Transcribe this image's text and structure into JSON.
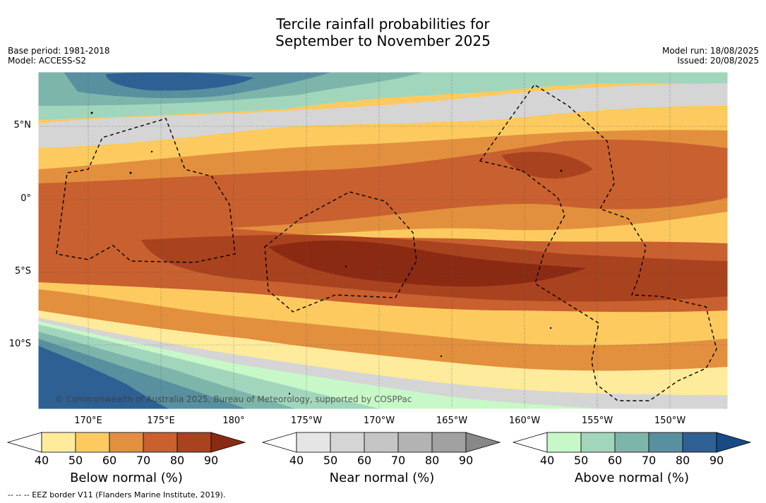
{
  "title_line1": "Tercile rainfall probabilities for",
  "title_line2": "September to November 2025",
  "meta_left": {
    "base_period": "Base period: 1981-2018",
    "model": "Model: ACCESS-S2"
  },
  "meta_right": {
    "model_run": "Model run: 18/08/2025",
    "issued": "Issued: 20/08/2025"
  },
  "latitudes": [
    "5°N",
    "0°",
    "5°S",
    "10°S"
  ],
  "longitudes": [
    "170°E",
    "175°E",
    "180°",
    "175°W",
    "170°W",
    "165°W",
    "160°W",
    "155°W",
    "150°W"
  ],
  "copyright": "© Commonwealth of Australia 2025, Bureau of Meteorology, supported by COSPPac",
  "colorbars": [
    {
      "title": "Below normal (%)",
      "ticks": [
        "40",
        "50",
        "60",
        "70",
        "80",
        "90"
      ],
      "colors": [
        "#ffffff",
        "#ffeb9c",
        "#fdca5f",
        "#e2903e",
        "#c8602f",
        "#a9421e",
        "#8b2a13"
      ]
    },
    {
      "title": "Near normal (%)",
      "ticks": [
        "40",
        "50",
        "60",
        "70",
        "80",
        "90"
      ],
      "colors": [
        "#ffffff",
        "#e5e5e5",
        "#d5d5d5",
        "#c5c5c5",
        "#b3b3b3",
        "#a1a1a1",
        "#888888"
      ]
    },
    {
      "title": "Above normal (%)",
      "ticks": [
        "40",
        "50",
        "60",
        "70",
        "80",
        "90"
      ],
      "colors": [
        "#ffffff",
        "#c8f8c8",
        "#a2d6bc",
        "#7eb5ab",
        "#5890a0",
        "#2f6094",
        "#184a84"
      ]
    }
  ],
  "footer": "-- -- -- EEZ border V11 (Flanders Marine Institute, 2019)."
}
